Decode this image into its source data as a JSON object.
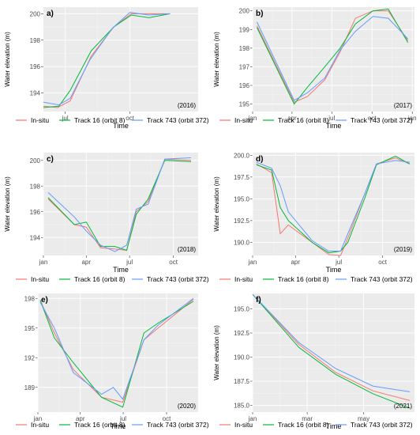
{
  "chart_data": [
    {
      "panel": "a)",
      "year_label": "(2016)",
      "type": "line",
      "xlabel": "Time",
      "ylabel": "Water elevation (m)",
      "xlim": [
        0,
        220
      ],
      "ylim": [
        192.6,
        200.5
      ],
      "yticks": [
        194,
        196,
        198,
        200
      ],
      "xticks": [
        {
          "v": 31,
          "label": "jul"
        },
        {
          "v": 123,
          "label": "oct"
        }
      ],
      "series": [
        {
          "name": "In-situ",
          "color": "#F8766D",
          "points": [
            [
              0,
              193.0
            ],
            [
              20,
              192.9
            ],
            [
              38,
              193.4
            ],
            [
              68,
              196.8
            ],
            [
              100,
              199.0
            ],
            [
              125,
              200.0
            ],
            [
              160,
              200.0
            ],
            [
              180,
              200.0
            ]
          ]
        },
        {
          "name": "Track 16 (orbit 8)",
          "color": "#00BA38",
          "points": [
            [
              0,
              192.9
            ],
            [
              22,
              193.0
            ],
            [
              38,
              194.2
            ],
            [
              68,
              197.2
            ],
            [
              100,
              199.0
            ],
            [
              125,
              199.9
            ],
            [
              150,
              199.7
            ],
            [
              180,
              200.0
            ]
          ]
        },
        {
          "name": "Track 743 (orbit 372)",
          "color": "#619CFF",
          "points": [
            [
              0,
              193.3
            ],
            [
              22,
              193.1
            ],
            [
              38,
              193.6
            ],
            [
              66,
              196.5
            ],
            [
              98,
              198.9
            ],
            [
              123,
              200.1
            ],
            [
              150,
              199.9
            ],
            [
              180,
              200.0
            ]
          ]
        }
      ]
    },
    {
      "panel": "b)",
      "year_label": "(2017)",
      "type": "line",
      "xlabel": "Time",
      "ylabel": "Water elevation (m)",
      "xlim": [
        0,
        370
      ],
      "ylim": [
        194.6,
        200.2
      ],
      "yticks": [
        195,
        196,
        197,
        198,
        199,
        200
      ],
      "xticks": [
        {
          "v": 0,
          "label": "jan"
        },
        {
          "v": 90,
          "label": "apr"
        },
        {
          "v": 181,
          "label": "jul"
        },
        {
          "v": 273,
          "label": "oct"
        },
        {
          "v": 365,
          "label": "jan"
        }
      ],
      "series": [
        {
          "name": "In-situ",
          "color": "#F8766D",
          "points": [
            [
              10,
              199.2
            ],
            [
              95,
              195.1
            ],
            [
              125,
              195.4
            ],
            [
              165,
              196.3
            ],
            [
              200,
              197.8
            ],
            [
              235,
              199.6
            ],
            [
              275,
              200.0
            ],
            [
              310,
              200.0
            ],
            [
              355,
              198.4
            ]
          ]
        },
        {
          "name": "Track 16 (orbit 8)",
          "color": "#00BA38",
          "points": [
            [
              10,
              199.1
            ],
            [
              95,
              195.0
            ],
            [
              125,
              195.9
            ],
            [
              165,
              197.0
            ],
            [
              200,
              198.0
            ],
            [
              235,
              199.3
            ],
            [
              275,
              200.0
            ],
            [
              310,
              200.1
            ],
            [
              355,
              198.3
            ]
          ]
        },
        {
          "name": "Track 743 (orbit 372)",
          "color": "#619CFF",
          "points": [
            [
              10,
              199.4
            ],
            [
              95,
              195.2
            ],
            [
              125,
              195.6
            ],
            [
              165,
              196.4
            ],
            [
              200,
              197.9
            ],
            [
              235,
              198.9
            ],
            [
              275,
              199.7
            ],
            [
              310,
              199.6
            ],
            [
              355,
              198.5
            ]
          ]
        }
      ]
    },
    {
      "panel": "c)",
      "year_label": "(2018)",
      "type": "line",
      "xlabel": "Time",
      "ylabel": "Water elevation (m)",
      "xlim": [
        0,
        325
      ],
      "ylim": [
        192.6,
        200.6
      ],
      "yticks": [
        194,
        196,
        198,
        200
      ],
      "xticks": [
        {
          "v": 0,
          "label": "jan"
        },
        {
          "v": 90,
          "label": "apr"
        },
        {
          "v": 181,
          "label": "jul"
        },
        {
          "v": 273,
          "label": "oct"
        }
      ],
      "series": [
        {
          "name": "In-situ",
          "color": "#F8766D",
          "points": [
            [
              10,
              197.0
            ],
            [
              65,
              195.0
            ],
            [
              90,
              194.8
            ],
            [
              120,
              193.2
            ],
            [
              150,
              193.1
            ],
            [
              175,
              193.0
            ],
            [
              195,
              196.0
            ],
            [
              220,
              196.8
            ],
            [
              255,
              200.1
            ],
            [
              310,
              200.0
            ]
          ]
        },
        {
          "name": "Track 16 (orbit 8)",
          "color": "#00BA38",
          "points": [
            [
              10,
              197.1
            ],
            [
              65,
              195.0
            ],
            [
              90,
              195.2
            ],
            [
              120,
              193.3
            ],
            [
              150,
              193.3
            ],
            [
              175,
              193.0
            ],
            [
              195,
              195.8
            ],
            [
              220,
              197.0
            ],
            [
              255,
              200.0
            ],
            [
              310,
              199.9
            ]
          ]
        },
        {
          "name": "Track 743 (orbit 372)",
          "color": "#619CFF",
          "points": [
            [
              10,
              197.5
            ],
            [
              65,
              195.6
            ],
            [
              90,
              194.5
            ],
            [
              120,
              193.4
            ],
            [
              150,
              192.9
            ],
            [
              175,
              193.4
            ],
            [
              195,
              196.2
            ],
            [
              220,
              196.6
            ],
            [
              255,
              200.1
            ],
            [
              310,
              200.2
            ]
          ]
        }
      ]
    },
    {
      "panel": "d)",
      "year_label": "(2019)",
      "type": "line",
      "xlabel": "Time",
      "ylabel": "Water elevation (m)",
      "xlim": [
        0,
        340
      ],
      "ylim": [
        188.5,
        200.3
      ],
      "yticks": [
        190.0,
        192.5,
        195.0,
        197.5,
        200.0
      ],
      "ytick_labels": [
        "190.0",
        "192.5",
        "195.0",
        "197.5",
        "200.0"
      ],
      "xticks": [
        {
          "v": 0,
          "label": "jan"
        },
        {
          "v": 90,
          "label": "apr"
        },
        {
          "v": 181,
          "label": "jul"
        },
        {
          "v": 273,
          "label": "oct"
        }
      ],
      "series": [
        {
          "name": "In-situ",
          "color": "#F8766D",
          "points": [
            [
              8,
              199.0
            ],
            [
              40,
              198.0
            ],
            [
              58,
              191.0
            ],
            [
              75,
              192.0
            ],
            [
              125,
              190.0
            ],
            [
              160,
              188.6
            ],
            [
              185,
              188.5
            ],
            [
              200,
              190.5
            ],
            [
              235,
              195.5
            ],
            [
              260,
              199.0
            ],
            [
              300,
              199.7
            ],
            [
              330,
              199.0
            ]
          ]
        },
        {
          "name": "Track 16 (orbit 8)",
          "color": "#00BA38",
          "points": [
            [
              8,
              198.9
            ],
            [
              40,
              198.3
            ],
            [
              58,
              194.0
            ],
            [
              75,
              192.5
            ],
            [
              125,
              190.0
            ],
            [
              160,
              188.8
            ],
            [
              185,
              189.0
            ],
            [
              200,
              190.0
            ],
            [
              235,
              195.0
            ],
            [
              260,
              198.9
            ],
            [
              300,
              199.9
            ],
            [
              330,
              199.0
            ]
          ]
        },
        {
          "name": "Track 743 (orbit 372)",
          "color": "#619CFF",
          "points": [
            [
              8,
              199.2
            ],
            [
              40,
              198.5
            ],
            [
              58,
              196.5
            ],
            [
              75,
              193.5
            ],
            [
              125,
              190.2
            ],
            [
              160,
              189.0
            ],
            [
              185,
              189.0
            ],
            [
              200,
              191.0
            ],
            [
              235,
              195.5
            ],
            [
              260,
              199.0
            ],
            [
              300,
              199.4
            ],
            [
              330,
              199.2
            ]
          ]
        }
      ]
    },
    {
      "panel": "e)",
      "year_label": "(2020)",
      "type": "line",
      "xlabel": "Time",
      "ylabel": "",
      "xlim": [
        0,
        340
      ],
      "ylim": [
        186.5,
        198.5
      ],
      "yticks": [
        189,
        192,
        195,
        198
      ],
      "xticks": [
        {
          "v": 0,
          "label": "jan"
        },
        {
          "v": 90,
          "label": "apr"
        },
        {
          "v": 181,
          "label": "jul"
        },
        {
          "v": 273,
          "label": "oct"
        }
      ],
      "series": [
        {
          "name": "In-situ",
          "color": "#F8766D",
          "points": [
            [
              5,
              197.8
            ],
            [
              35,
              194.5
            ],
            [
              75,
              190.8
            ],
            [
              135,
              188.0
            ],
            [
              180,
              187.5
            ],
            [
              225,
              193.8
            ],
            [
              255,
              195.0
            ],
            [
              330,
              197.9
            ]
          ]
        },
        {
          "name": "Track 16 (orbit 8)",
          "color": "#00BA38",
          "points": [
            [
              5,
              197.8
            ],
            [
              35,
              194.0
            ],
            [
              75,
              191.5
            ],
            [
              135,
              188.0
            ],
            [
              180,
              187.0
            ],
            [
              225,
              194.5
            ],
            [
              255,
              195.5
            ],
            [
              330,
              197.7
            ]
          ]
        },
        {
          "name": "Track 743 (orbit 372)",
          "color": "#619CFF",
          "points": [
            [
              5,
              197.6
            ],
            [
              35,
              195.0
            ],
            [
              75,
              190.5
            ],
            [
              135,
              188.3
            ],
            [
              160,
              189.0
            ],
            [
              180,
              187.8
            ],
            [
              225,
              193.8
            ],
            [
              255,
              195.3
            ],
            [
              330,
              198.0
            ]
          ]
        }
      ]
    },
    {
      "panel": "f)",
      "year_label": "(2021)",
      "type": "line",
      "xlabel": "Time",
      "ylabel": "Water elevation (m)",
      "xlim": [
        0,
        175
      ],
      "ylim": [
        184.3,
        196.6
      ],
      "yticks": [
        185.0,
        187.5,
        190.0,
        192.5,
        195.0
      ],
      "ytick_labels": [
        "185.0",
        "187.5",
        "190.0",
        "192.5",
        "195.0"
      ],
      "xticks": [
        {
          "v": 0,
          "label": "jan"
        },
        {
          "v": 59,
          "label": "mar"
        },
        {
          "v": 120,
          "label": "may"
        }
      ],
      "series": [
        {
          "name": "In-situ",
          "color": "#F8766D",
          "points": [
            [
              0,
              196.5
            ],
            [
              50,
              191.3
            ],
            [
              90,
              188.4
            ],
            [
              130,
              186.5
            ],
            [
              170,
              185.5
            ]
          ]
        },
        {
          "name": "Track 16 (orbit 8)",
          "color": "#00BA38",
          "points": [
            [
              0,
              196.5
            ],
            [
              50,
              191.0
            ],
            [
              90,
              188.2
            ],
            [
              130,
              186.2
            ],
            [
              170,
              184.7
            ]
          ]
        },
        {
          "name": "Track 743 (orbit 372)",
          "color": "#619CFF",
          "points": [
            [
              0,
              196.5
            ],
            [
              50,
              191.5
            ],
            [
              90,
              188.8
            ],
            [
              130,
              187.0
            ],
            [
              170,
              186.4
            ]
          ]
        }
      ]
    }
  ],
  "legend": [
    {
      "label": "In-situ",
      "color": "#F8766D"
    },
    {
      "label": "Track 16 (orbit 8)",
      "color": "#00BA38"
    },
    {
      "label": "Track 743 (orbit 372)",
      "color": "#619CFF"
    }
  ]
}
